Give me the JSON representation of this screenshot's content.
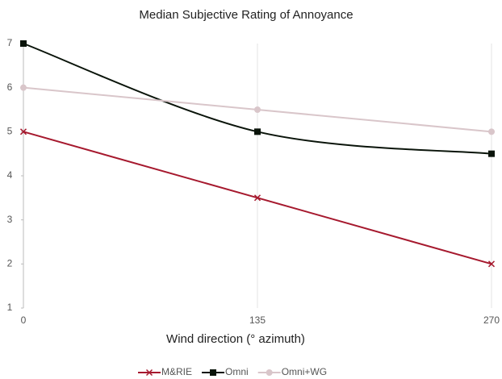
{
  "chart_data": {
    "type": "line",
    "title": "Median Subjective Rating of Annoyance",
    "x_label": "Wind direction (° azimuth)",
    "x": [
      0,
      135,
      270
    ],
    "xlim": [
      0,
      270
    ],
    "xticks": [
      0,
      135,
      270
    ],
    "ylim": [
      1,
      7
    ],
    "yticks": [
      1,
      2,
      3,
      4,
      5,
      6,
      7
    ],
    "legend": "bottom",
    "series": [
      {
        "name": "M&RIE",
        "color": "#a6192e",
        "marker": "x",
        "smooth": false,
        "values": [
          5,
          3.5,
          2
        ]
      },
      {
        "name": "Omni",
        "color": "#0a140a",
        "marker": "square",
        "smooth": true,
        "values": [
          7,
          5,
          4.5
        ]
      },
      {
        "name": "Omni+WG",
        "color": "#d9c6ca",
        "marker": "circle",
        "smooth": false,
        "values": [
          6,
          5.5,
          5
        ]
      }
    ]
  }
}
